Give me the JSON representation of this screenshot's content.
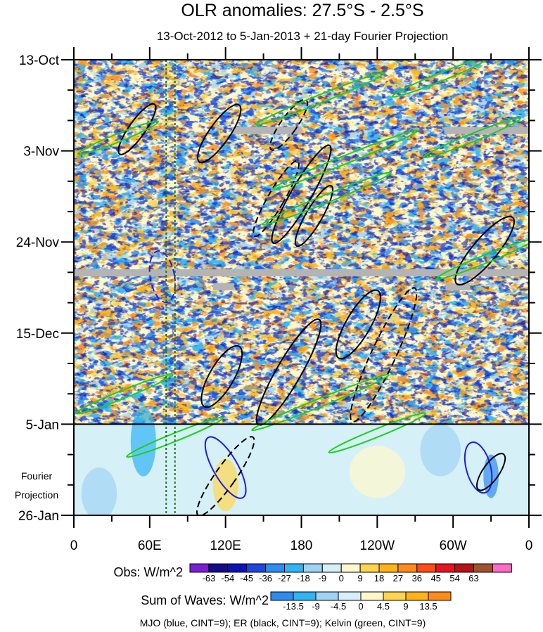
{
  "chart_data": {
    "type": "heatmap",
    "title": "OLR anomalies: 27.5°S - 2.5°S",
    "subtitle": "13-Oct-2012 to 5-Jan-2013 + 21-day Fourier Projection",
    "xlabel": "",
    "ylabel": "",
    "x_ticks": [
      "0",
      "60E",
      "120E",
      "180",
      "120W",
      "60W",
      "0"
    ],
    "x_tick_values": [
      0,
      60,
      120,
      180,
      240,
      300,
      360
    ],
    "xlim": [
      0,
      360
    ],
    "y_ticks": [
      "13-Oct",
      "3-Nov",
      "24-Nov",
      "15-Dec",
      "5-Jan",
      "26-Jan"
    ],
    "y_tick_days": [
      0,
      21,
      42,
      63,
      84,
      105
    ],
    "ylim_days": [
      0,
      105
    ],
    "observation_end_day": 84,
    "projection_label": [
      "Fourier",
      "Projection"
    ],
    "reference_lines_longitude": [
      73,
      80
    ],
    "obs_colorbar": {
      "label": "Obs: W/m^2",
      "levels": [
        "-63",
        "-54",
        "-45",
        "-36",
        "-27",
        "-18",
        "-9",
        "0",
        "9",
        "18",
        "27",
        "36",
        "45",
        "54",
        "63"
      ],
      "colors": [
        "#7a1fd6",
        "#160a8c",
        "#0a14b4",
        "#1e46dc",
        "#2d8cf0",
        "#2fb4f5",
        "#9fd3f5",
        "#d6f0f7",
        "#fff8cc",
        "#ffd54d",
        "#ffb319",
        "#ff8c1a",
        "#ff4d14",
        "#e6141e",
        "#b41414",
        "#a0522d",
        "#ff69c8"
      ]
    },
    "waves_colorbar": {
      "label": "Sum of Waves: W/m^2",
      "levels": [
        "-13.5",
        "-9",
        "-4.5",
        "0",
        "4.5",
        "9",
        "13.5"
      ],
      "colors": [
        "#2d8cf0",
        "#2fb4f5",
        "#9fd3f5",
        "#d6f0f7",
        "#fff8cc",
        "#ffd54d",
        "#ffb319",
        "#ff8c1a"
      ]
    },
    "legend_text": "MJO (blue, CINT=9); ER (black, CINT=9); Kelvin (green, CINT=9)",
    "wave_contours": [
      {
        "wave": "MJO",
        "sign": "neg",
        "lon": 70,
        "day": 50,
        "rx": 3,
        "ry": 6,
        "rot": -10
      },
      {
        "wave": "MJO",
        "sign": "pos",
        "lon": 120,
        "day": 94,
        "rx": 3,
        "ry": 8,
        "rot": -30
      },
      {
        "wave": "MJO",
        "sign": "pos",
        "lon": 320,
        "day": 94,
        "rx": 3,
        "ry": 6,
        "rot": -15
      },
      {
        "wave": "ER",
        "sign": "pos",
        "lon": 50,
        "day": 16,
        "rx": 2,
        "ry": 7,
        "rot": 35
      },
      {
        "wave": "ER",
        "sign": "pos",
        "lon": 115,
        "day": 17,
        "rx": 2.5,
        "ry": 8,
        "rot": 35
      },
      {
        "wave": "ER",
        "sign": "neg",
        "lon": 170,
        "day": 15,
        "rx": 2,
        "ry": 7,
        "rot": 35
      },
      {
        "wave": "ER",
        "sign": "pos",
        "lon": 180,
        "day": 31,
        "rx": 2.5,
        "ry": 13,
        "rot": 30
      },
      {
        "wave": "ER",
        "sign": "neg",
        "lon": 160,
        "day": 32,
        "rx": 2,
        "ry": 10,
        "rot": 30
      },
      {
        "wave": "ER",
        "sign": "pos",
        "lon": 190,
        "day": 36,
        "rx": 2,
        "ry": 8,
        "rot": 30
      },
      {
        "wave": "ER",
        "sign": "pos",
        "lon": 117,
        "day": 73,
        "rx": 3,
        "ry": 8,
        "rot": 30
      },
      {
        "wave": "ER",
        "sign": "pos",
        "lon": 170,
        "day": 72,
        "rx": 3,
        "ry": 14,
        "rot": 30
      },
      {
        "wave": "ER",
        "sign": "pos",
        "lon": 225,
        "day": 61,
        "rx": 3,
        "ry": 9,
        "rot": 30
      },
      {
        "wave": "ER",
        "sign": "neg",
        "lon": 245,
        "day": 68,
        "rx": 3,
        "ry": 17,
        "rot": 25
      },
      {
        "wave": "ER",
        "sign": "pos",
        "lon": 325,
        "day": 44,
        "rx": 3,
        "ry": 10,
        "rot": 40
      },
      {
        "wave": "ER",
        "sign": "neg",
        "lon": 120,
        "day": 96,
        "rx": 2.5,
        "ry": 11,
        "rot": 35
      },
      {
        "wave": "ER",
        "sign": "pos",
        "lon": 330,
        "day": 95,
        "rx": 2,
        "ry": 5,
        "rot": 35
      },
      {
        "wave": "Kelvin",
        "sign": "pos",
        "lon": 195,
        "day": 9,
        "rx": 1,
        "ry": 16,
        "rot": 68
      },
      {
        "wave": "Kelvin",
        "sign": "pos",
        "lon": 215,
        "day": 23,
        "rx": 1,
        "ry": 18,
        "rot": 68
      },
      {
        "wave": "Kelvin",
        "sign": "pos",
        "lon": 200,
        "day": 32,
        "rx": 1,
        "ry": 16,
        "rot": 68
      },
      {
        "wave": "Kelvin",
        "sign": "pos",
        "lon": 35,
        "day": 18,
        "rx": 1,
        "ry": 10,
        "rot": 68
      },
      {
        "wave": "Kelvin",
        "sign": "pos",
        "lon": 290,
        "day": 4,
        "rx": 1,
        "ry": 12,
        "rot": 68
      },
      {
        "wave": "Kelvin",
        "sign": "pos",
        "lon": 315,
        "day": 18,
        "rx": 1,
        "ry": 12,
        "rot": 68
      },
      {
        "wave": "Kelvin",
        "sign": "pos",
        "lon": 325,
        "day": 46,
        "rx": 1,
        "ry": 12,
        "rot": 68
      },
      {
        "wave": "Kelvin",
        "sign": "pos",
        "lon": 40,
        "day": 77,
        "rx": 1,
        "ry": 12,
        "rot": 68
      },
      {
        "wave": "Kelvin",
        "sign": "pos",
        "lon": 195,
        "day": 79,
        "rx": 1,
        "ry": 17,
        "rot": 68
      },
      {
        "wave": "Kelvin",
        "sign": "pos",
        "lon": 240,
        "day": 86,
        "rx": 1,
        "ry": 12,
        "rot": 68
      },
      {
        "wave": "Kelvin",
        "sign": "pos",
        "lon": 80,
        "day": 87,
        "rx": 1,
        "ry": 12,
        "rot": 68
      }
    ]
  }
}
